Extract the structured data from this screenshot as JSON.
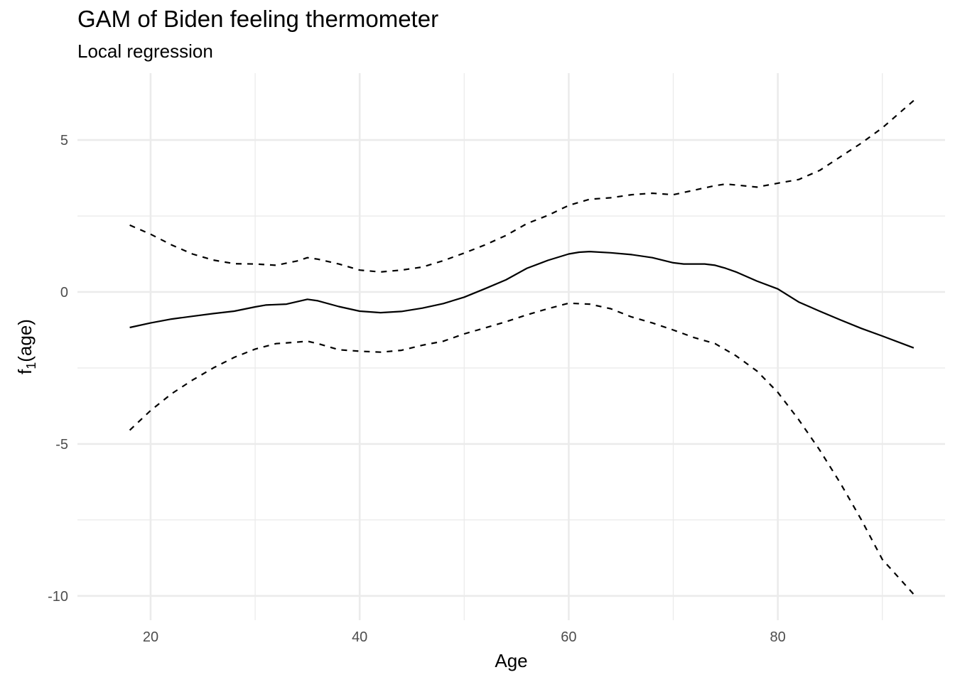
{
  "chart_data": {
    "type": "line",
    "title": "GAM of Biden feeling thermometer",
    "subtitle": "Local regression",
    "xlabel": "Age",
    "ylabel": {
      "base": "f",
      "sub": "1",
      "rest": "(age)"
    },
    "xlim": [
      13,
      96
    ],
    "ylim": [
      -10.8,
      7.2
    ],
    "xticks": [
      20,
      40,
      60,
      80
    ],
    "yticks": [
      -10,
      -5,
      0,
      5
    ],
    "ytick_labels": [
      "-10",
      "-5",
      "0",
      "5"
    ],
    "grid": true,
    "series": [
      {
        "style": "solid",
        "x": [
          18,
          20,
          22,
          24,
          26,
          28,
          30,
          31,
          33,
          35,
          36,
          38,
          40,
          42,
          44,
          46,
          48,
          50,
          52,
          54,
          56,
          58,
          60,
          61,
          62,
          64,
          66,
          68,
          70,
          71,
          73,
          74,
          75,
          76,
          78,
          80,
          82,
          84,
          86,
          88,
          90,
          93
        ],
        "y": [
          -1.17,
          -1.02,
          -0.89,
          -0.8,
          -0.71,
          -0.63,
          -0.49,
          -0.43,
          -0.4,
          -0.24,
          -0.29,
          -0.48,
          -0.63,
          -0.68,
          -0.64,
          -0.53,
          -0.38,
          -0.17,
          0.11,
          0.4,
          0.78,
          1.04,
          1.25,
          1.31,
          1.33,
          1.29,
          1.23,
          1.13,
          0.96,
          0.92,
          0.92,
          0.88,
          0.78,
          0.66,
          0.36,
          0.1,
          -0.33,
          -0.63,
          -0.92,
          -1.2,
          -1.45,
          -1.84
        ]
      },
      {
        "style": "dashed",
        "x": [
          18,
          20,
          22,
          24,
          26,
          28,
          30,
          32,
          34,
          35,
          36,
          38,
          40,
          42,
          44,
          46,
          48,
          50,
          52,
          54,
          56,
          58,
          60,
          62,
          64,
          66,
          68,
          70,
          72,
          74,
          75,
          76,
          78,
          80,
          82,
          84,
          86,
          88,
          90,
          93
        ],
        "y": [
          2.2,
          1.9,
          1.55,
          1.25,
          1.05,
          0.93,
          0.92,
          0.88,
          1.02,
          1.13,
          1.08,
          0.92,
          0.72,
          0.66,
          0.72,
          0.82,
          1.03,
          1.28,
          1.55,
          1.86,
          2.25,
          2.52,
          2.85,
          3.05,
          3.1,
          3.2,
          3.25,
          3.2,
          3.35,
          3.5,
          3.55,
          3.52,
          3.45,
          3.58,
          3.7,
          4.0,
          4.45,
          4.9,
          5.4,
          6.3
        ]
      },
      {
        "style": "dashed",
        "x": [
          18,
          20,
          22,
          24,
          26,
          28,
          30,
          32,
          34,
          35,
          36,
          38,
          40,
          42,
          44,
          46,
          48,
          50,
          52,
          54,
          56,
          58,
          60,
          62,
          64,
          66,
          68,
          70,
          72,
          74,
          76,
          78,
          80,
          82,
          84,
          86,
          88,
          90,
          93
        ],
        "y": [
          -4.55,
          -3.9,
          -3.35,
          -2.9,
          -2.5,
          -2.15,
          -1.88,
          -1.7,
          -1.65,
          -1.62,
          -1.7,
          -1.9,
          -1.95,
          -1.98,
          -1.92,
          -1.75,
          -1.62,
          -1.38,
          -1.18,
          -0.98,
          -0.75,
          -0.55,
          -0.37,
          -0.4,
          -0.55,
          -0.82,
          -1.02,
          -1.25,
          -1.5,
          -1.7,
          -2.1,
          -2.6,
          -3.3,
          -4.2,
          -5.2,
          -6.3,
          -7.5,
          -8.8,
          -9.95
        ]
      }
    ]
  }
}
